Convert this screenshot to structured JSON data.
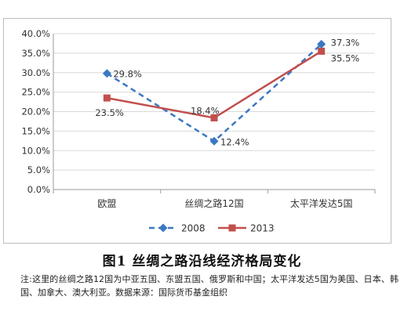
{
  "chart_data": {
    "type": "line",
    "categories": [
      "欧盟",
      "丝绸之路12国",
      "太平洋发达5国"
    ],
    "series": [
      {
        "name": "2008",
        "values": [
          29.8,
          12.4,
          37.3
        ],
        "color": "#3a78c3",
        "dashed": true,
        "marker": "diamond",
        "labels": [
          "29.8%",
          "12.4%",
          "37.3%"
        ]
      },
      {
        "name": "2013",
        "values": [
          23.5,
          18.4,
          35.5
        ],
        "color": "#c0504d",
        "dashed": false,
        "marker": "square",
        "labels": [
          "23.5%",
          "18.4%",
          "35.5%"
        ]
      }
    ],
    "ylim": [
      0,
      40
    ],
    "yticks": [
      "0.0%",
      "5.0%",
      "10.0%",
      "15.0%",
      "20.0%",
      "25.0%",
      "30.0%",
      "35.0%",
      "40.0%"
    ],
    "grid": true,
    "legend_position": "bottom",
    "title": "",
    "xlabel": "",
    "ylabel": ""
  },
  "caption": "图1  丝绸之路沿线经济格局变化",
  "note": "注:这里的丝绸之路12国为中亚五国、东盟五国、俄罗斯和中国；太平洋发达5国为美国、日本、韩国、加拿大、澳大利亚。数据来源：国际货币基金组织"
}
